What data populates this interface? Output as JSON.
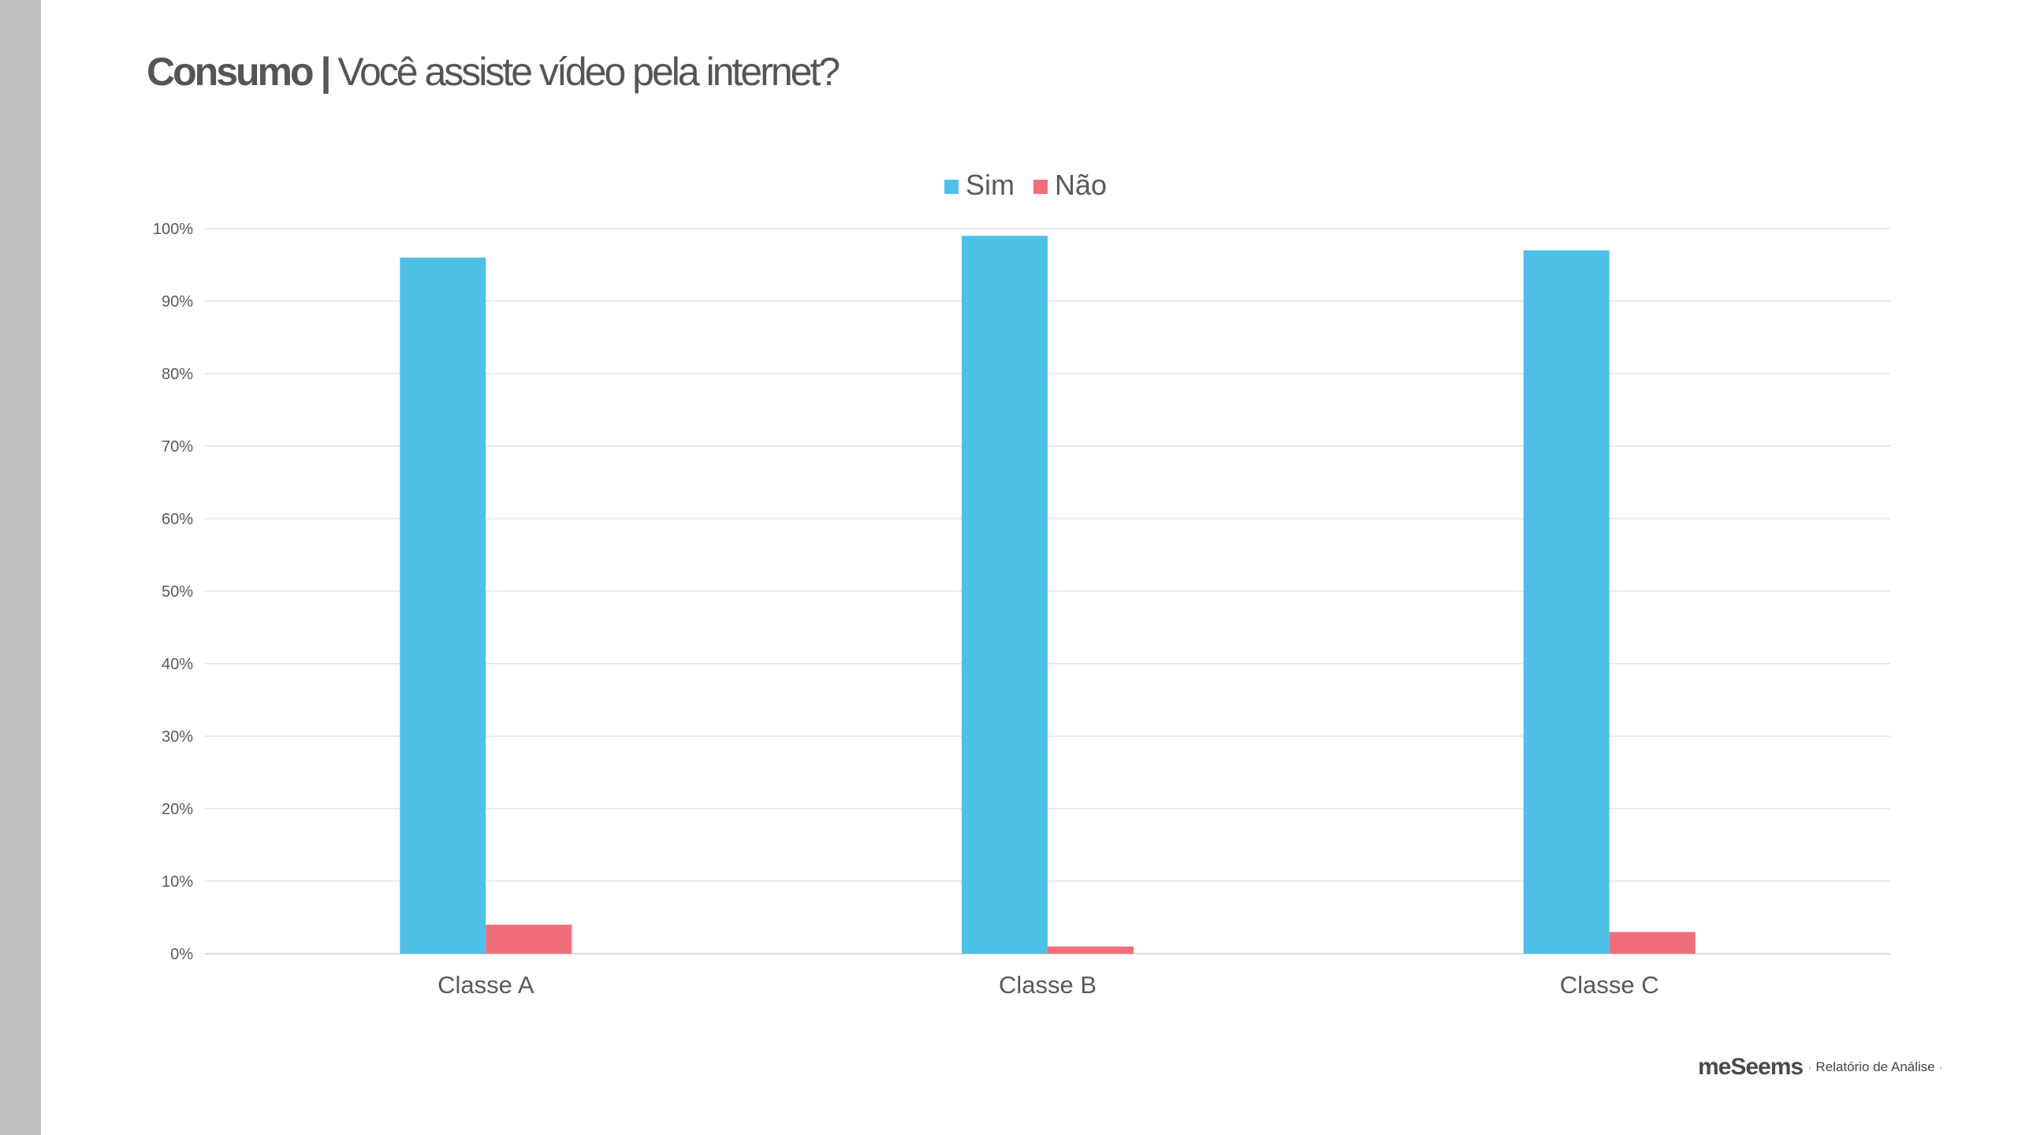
{
  "page": {
    "title_bold": "Consumo",
    "title_separator": "|",
    "title_rest": "Você assiste vídeo pela internet?"
  },
  "footer": {
    "brand": "meSeems",
    "dot_left": "·",
    "report_label": "Relatório de Análise",
    "dot_right": "·"
  },
  "chart_data": {
    "type": "bar",
    "categories": [
      "Classe A",
      "Classe B",
      "Classe C"
    ],
    "series": [
      {
        "name": "Sim",
        "color": "#4fc1e8",
        "values": [
          96,
          99,
          97
        ]
      },
      {
        "name": "Não",
        "color": "#f06e7c",
        "values": [
          4,
          1,
          3
        ]
      }
    ],
    "ylim": [
      0,
      100
    ],
    "ytick_labels": [
      "0%",
      "10%",
      "20%",
      "30%",
      "40%",
      "50%",
      "60%",
      "70%",
      "80%",
      "90%",
      "100%"
    ],
    "legend_position": "top-center",
    "grid": true
  }
}
